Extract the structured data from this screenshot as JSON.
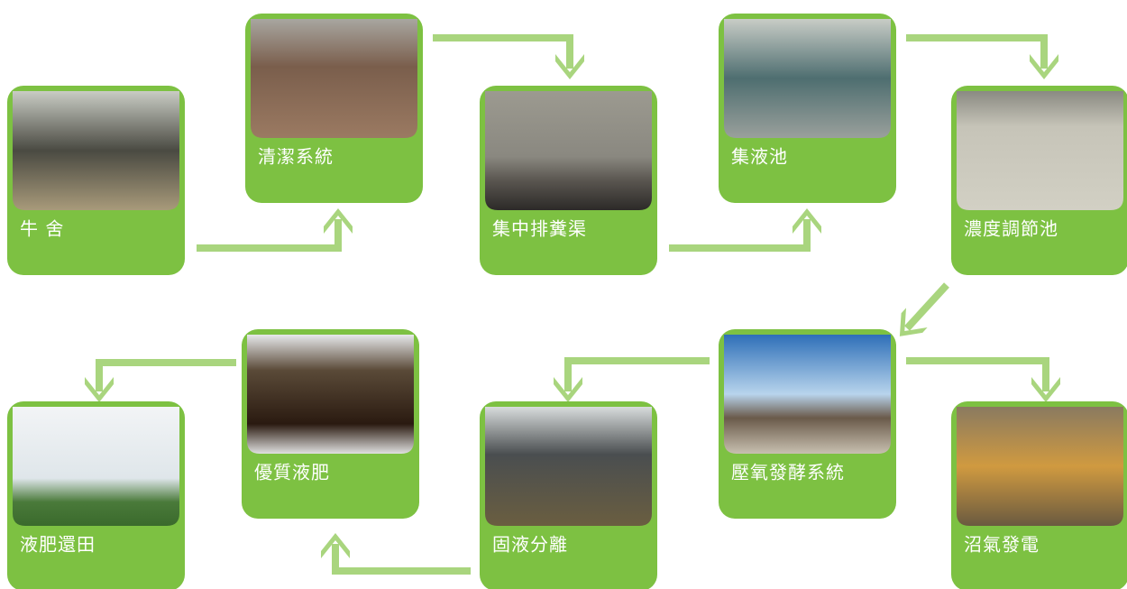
{
  "nodes": [
    {
      "label": "牛 舍"
    },
    {
      "label": "清潔系統"
    },
    {
      "label": "集中排糞渠"
    },
    {
      "label": "集液池"
    },
    {
      "label": "濃度調節池"
    },
    {
      "label": "壓氧發酵系統"
    },
    {
      "label": "沼氣發電"
    },
    {
      "label": "固液分離"
    },
    {
      "label": "優質液肥"
    },
    {
      "label": "液肥還田"
    }
  ]
}
